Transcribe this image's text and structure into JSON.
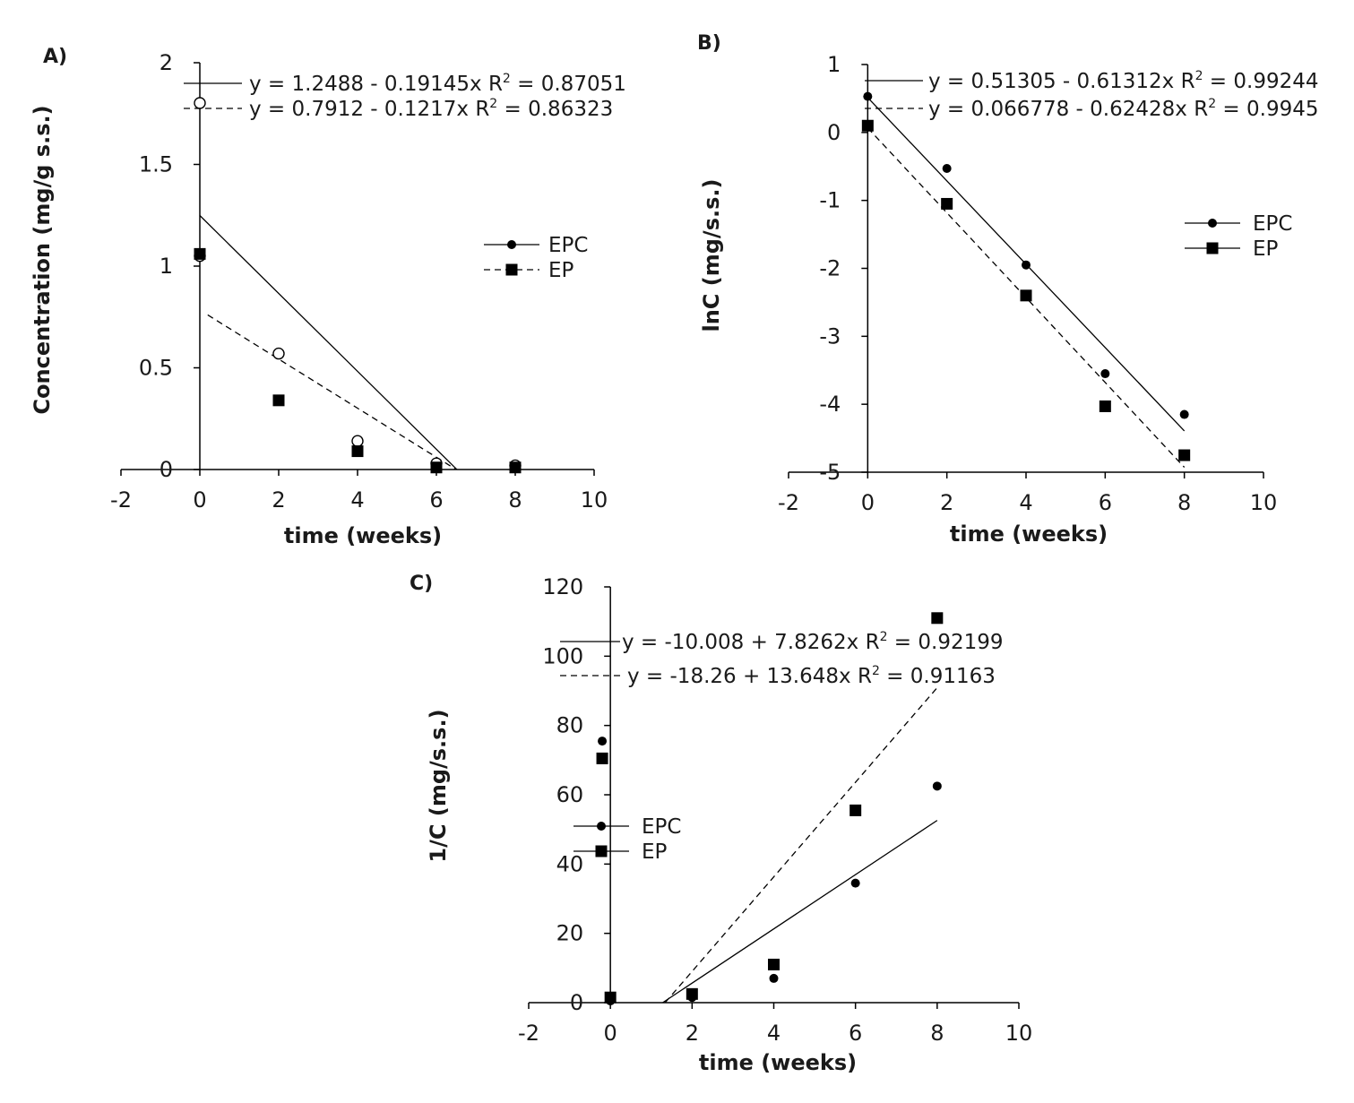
{
  "chart_data": [
    {
      "panel": "A)",
      "type": "scatter",
      "xlabel": "time (weeks)",
      "ylabel": "Concentration (mg/g s.s.)",
      "xlim": [
        -2,
        10
      ],
      "ylim": [
        0,
        2
      ],
      "xticks": [
        -2,
        0,
        2,
        4,
        6,
        8,
        10
      ],
      "yticks": [
        0,
        0.5,
        1,
        1.5,
        2
      ],
      "ytick_labels": [
        "0",
        "0.5",
        "1",
        "1.5",
        "2"
      ],
      "series": [
        {
          "name": "EPC",
          "marker": "open-circle",
          "x": [
            0,
            2,
            4,
            6,
            8
          ],
          "y": [
            1.05,
            0.57,
            0.14,
            0.03,
            0.02
          ]
        },
        {
          "name": "EP",
          "marker": "square",
          "x": [
            0,
            2,
            4,
            6,
            8
          ],
          "y": [
            1.06,
            0.34,
            0.09,
            0.01,
            0.01
          ]
        }
      ],
      "fits": [
        {
          "style": "solid",
          "x": [
            0,
            6.52
          ],
          "y": [
            1.2488,
            0
          ],
          "label_eq": "y = 1.2488 - 0.19145x",
          "label_r2": "0.87051",
          "key_marker": "none"
        },
        {
          "style": "dashed",
          "x": [
            0.2,
            6.5
          ],
          "y": [
            0.76,
            0
          ],
          "label_eq": "y = 0.7912 - 0.1217x",
          "label_r2": "0.86323",
          "key_marker": "open-circle"
        }
      ],
      "legend": [
        {
          "label": "EPC",
          "marker": "circle",
          "line": "solid"
        },
        {
          "label": "EP",
          "marker": "square",
          "line": "dashed"
        }
      ]
    },
    {
      "panel": "B)",
      "type": "scatter",
      "xlabel": "time (weeks)",
      "ylabel": "lnC (mg/s.s.)",
      "xlim": [
        -2,
        10
      ],
      "ylim": [
        -5,
        1
      ],
      "xticks": [
        -2,
        0,
        2,
        4,
        6,
        8,
        10
      ],
      "yticks": [
        -5,
        -4,
        -3,
        -2,
        -1,
        0,
        1
      ],
      "ytick_labels": [
        "-5",
        "-4",
        "-3",
        "-2",
        "-1",
        "0",
        "1"
      ],
      "series": [
        {
          "name": "EPC",
          "marker": "circle",
          "x": [
            0,
            2,
            4,
            6,
            8
          ],
          "y": [
            0.53,
            -0.53,
            -1.95,
            -3.55,
            -4.15
          ]
        },
        {
          "name": "EP",
          "marker": "square",
          "x": [
            0,
            2,
            4,
            6,
            8
          ],
          "y": [
            0.1,
            -1.05,
            -2.4,
            -4.03,
            -4.75
          ]
        }
      ],
      "fits": [
        {
          "style": "solid",
          "x": [
            0,
            8
          ],
          "y": [
            0.51305,
            -4.39191
          ],
          "label_eq": "y = 0.51305 - 0.61312x",
          "label_r2": "0.99244",
          "key_marker": "none"
        },
        {
          "style": "dashed",
          "x": [
            0,
            8
          ],
          "y": [
            0.066778,
            -4.92746
          ],
          "label_eq": "y = 0.066778 - 0.62428x",
          "label_r2": "0.9945",
          "key_marker": "none"
        }
      ],
      "legend": [
        {
          "label": "EPC",
          "marker": "circle",
          "line": "solid"
        },
        {
          "label": "EP",
          "marker": "square",
          "line": "solid"
        }
      ]
    },
    {
      "panel": "C)",
      "type": "scatter",
      "xlabel": "time (weeks)",
      "ylabel": "1/C (mg/s.s.)",
      "xlim": [
        -2,
        10
      ],
      "ylim": [
        0,
        120
      ],
      "xticks": [
        -2,
        0,
        2,
        4,
        6,
        8,
        10
      ],
      "yticks": [
        0,
        20,
        40,
        60,
        80,
        100,
        120
      ],
      "ytick_labels": [
        "0",
        "20",
        "40",
        "60",
        "80",
        100,
        "120"
      ],
      "series": [
        {
          "name": "EPC",
          "marker": "circle",
          "x": [
            -0.2,
            0,
            2,
            4,
            6,
            8
          ],
          "y": [
            75.5,
            0.5,
            1.5,
            7,
            34.5,
            62.5
          ]
        },
        {
          "name": "EP",
          "marker": "square",
          "x": [
            -0.2,
            0,
            2,
            4,
            6,
            8
          ],
          "y": [
            70.5,
            1.5,
            2.5,
            11,
            55.5,
            111
          ]
        }
      ],
      "fits": [
        {
          "style": "solid",
          "x": [
            1.28,
            8
          ],
          "y": [
            0,
            52.6
          ]
        },
        {
          "style": "dashed",
          "x": [
            1.34,
            8
          ],
          "y": [
            0,
            90.9
          ]
        }
      ],
      "fit_labels": [
        {
          "style": "solid",
          "label_eq": "y = -10.008 + 7.8262x",
          "label_r2": "0.92199"
        },
        {
          "style": "dashed",
          "label_eq": "y = -18.26 + 13.648x",
          "label_r2": "0.91163"
        }
      ],
      "legend": [
        {
          "label": "EPC",
          "marker": "circle",
          "line": "solid"
        },
        {
          "label": "EP",
          "marker": "square",
          "line": "solid"
        }
      ]
    }
  ],
  "r2_label": {
    "base": "R",
    "exp": "2",
    "eq": " = "
  }
}
